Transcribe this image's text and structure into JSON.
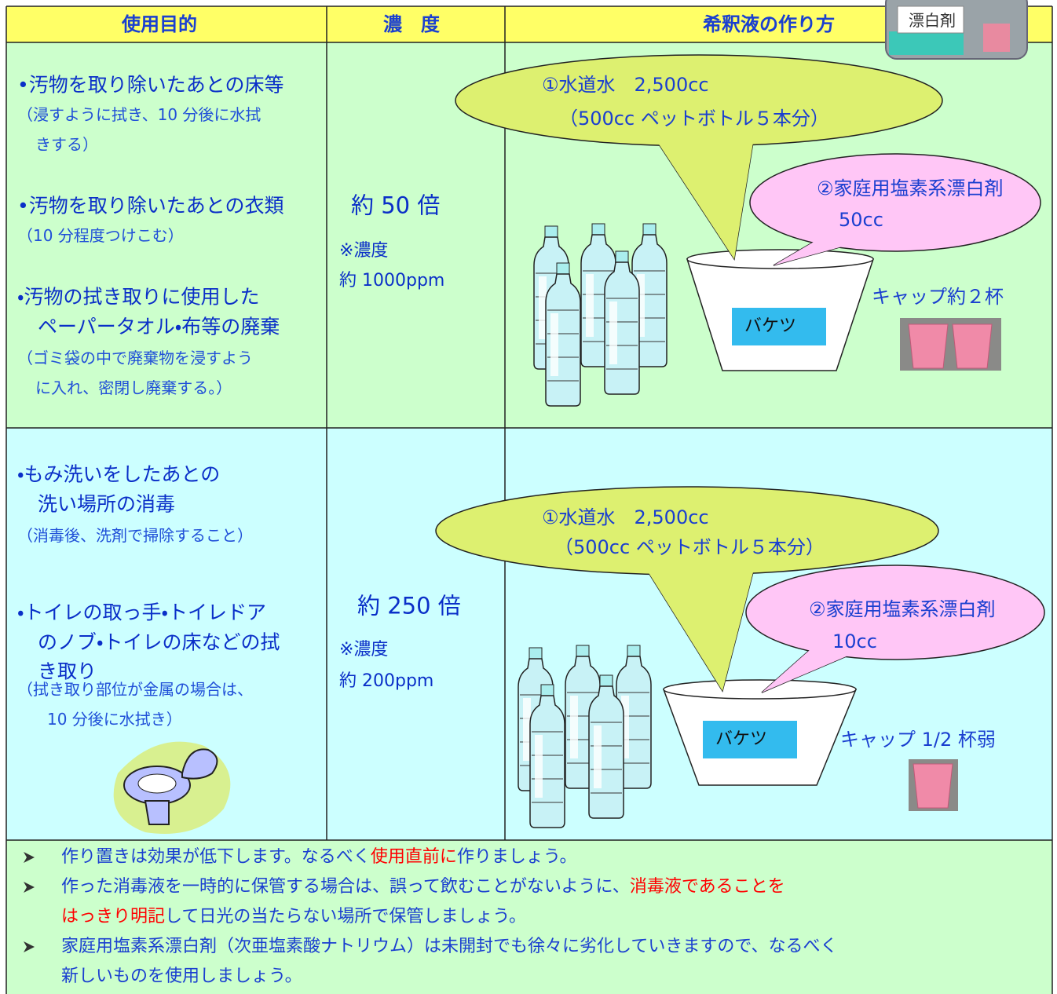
{
  "header": {
    "purpose": "使用目的",
    "concentration": "濃　度",
    "method": "希釈液の作り方",
    "bleach_label": "漂白剤"
  },
  "rows": [
    {
      "purposes": [
        {
          "title": [
            "•汚物を取り除いたあとの床等"
          ],
          "note": [
            "（浸すように拭き、10 分後に水拭",
            "きする）"
          ]
        },
        {
          "title": [
            "•汚物を取り除いたあとの衣類"
          ],
          "note": [
            "（10 分程度つけこむ）"
          ]
        },
        {
          "title": [
            "・汚物の拭き取りに使用した",
            "ペーパータオル・布等の廃棄"
          ],
          "note": [
            "（ゴミ袋の中で廃棄物を浸すよう",
            "に入れ、密閉し廃棄する。）"
          ]
        }
      ],
      "ratio": "約 50 倍",
      "concentration_label": "※濃度",
      "ppm": "約 1000ppm",
      "water": [
        "①水道水　2,500cc",
        "（500cc ペットボトル５本分）"
      ],
      "bleach": [
        "②家庭用塩素系漂白剤",
        "50cc"
      ],
      "bucket": "バケツ",
      "cap": "キャップ約２杯"
    },
    {
      "purposes": [
        {
          "title": [
            "・もみ洗いをしたあとの",
            "洗い場所の消毒"
          ],
          "note": [
            "（消毒後、洗剤で掃除すること）"
          ]
        },
        {
          "title": [
            "・トイレの取っ手・トイレドア",
            "のノブ・トイレの床などの拭",
            "き取り"
          ],
          "note": [
            "（拭き取り部位が金属の場合は、",
            "10 分後に水拭き）"
          ]
        }
      ],
      "ratio": "約 250 倍",
      "concentration_label": "※濃度",
      "ppm": "約 200ppm",
      "water": [
        "①水道水　2,500cc",
        "（500cc ペットボトル５本分）"
      ],
      "bleach": [
        "②家庭用塩素系漂白剤",
        "10cc"
      ],
      "bucket": "バケツ",
      "cap": "キャップ 1/2 杯弱"
    }
  ],
  "notes": [
    [
      [
        {
          "text": "作り置きは効果が低下します。なるべく"
        },
        {
          "text": "使用直前に",
          "color": "#ff0000"
        },
        {
          "text": "作りましょう。"
        }
      ]
    ],
    [
      [
        {
          "text": "作った消毒液を一時的に保管する場合は、誤って飲むことがないように、"
        },
        {
          "text": "消毒液であることを",
          "color": "#ff0000"
        }
      ],
      [
        {
          "text": "はっきり明記",
          "color": "#ff0000"
        },
        {
          "text": "して日光の当たらない場所で保管しましょう。"
        }
      ]
    ],
    [
      [
        {
          "text": "家庭用塩素系漂白剤（次亜塩素酸ナトリウム）は未開封でも徐々に劣化していきますので、なるべく"
        }
      ],
      [
        {
          "text": "新しいものを使用しましょう。"
        }
      ]
    ]
  ]
}
